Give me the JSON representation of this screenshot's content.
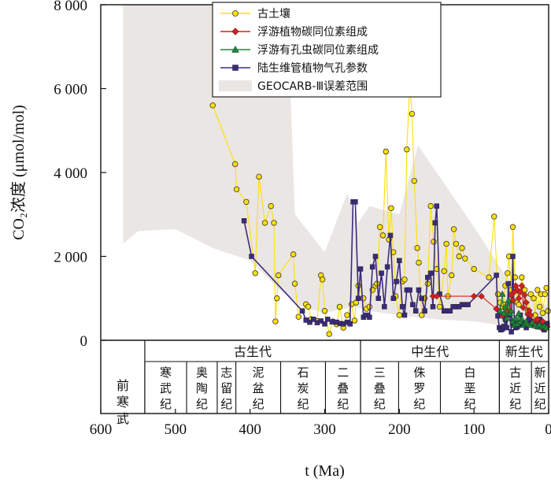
{
  "chart_data": {
    "type": "line",
    "ylabel": "CO₂浓度 (μmol/mol)",
    "xlabel": "t (Ma)",
    "xlim": [
      600,
      0
    ],
    "ylim": [
      0,
      8000
    ],
    "x_ticks": [
      {
        "value": 600,
        "label": "600"
      },
      {
        "value": 500,
        "label": "500"
      },
      {
        "value": 400,
        "label": "400"
      },
      {
        "value": 300,
        "label": "300"
      },
      {
        "value": 200,
        "label": "200"
      },
      {
        "value": 100,
        "label": "100"
      },
      {
        "value": 0,
        "label": "0"
      }
    ],
    "y_ticks": [
      {
        "value": 0,
        "label": "0"
      },
      {
        "value": 2000,
        "label": "2 000"
      },
      {
        "value": 4000,
        "label": "4 000"
      },
      {
        "value": 6000,
        "label": "6 000"
      },
      {
        "value": 8000,
        "label": "8 000"
      }
    ],
    "legend_position": "top-center",
    "error_band": {
      "name": "GEOCARB-Ⅲ误差范围",
      "color": "#eae6e4",
      "upper": [
        [
          570,
          8000
        ],
        [
          480,
          8000
        ],
        [
          350,
          8000
        ],
        [
          340,
          3000
        ],
        [
          300,
          2100
        ],
        [
          270,
          3500
        ],
        [
          255,
          2800
        ],
        [
          240,
          3200
        ],
        [
          200,
          3000
        ],
        [
          175,
          4650
        ],
        [
          100,
          2700
        ],
        [
          60,
          1600
        ],
        [
          30,
          1100
        ],
        [
          0,
          800
        ]
      ],
      "lower": [
        [
          570,
          2300
        ],
        [
          550,
          2600
        ],
        [
          500,
          2650
        ],
        [
          450,
          2200
        ],
        [
          400,
          1900
        ],
        [
          360,
          1200
        ],
        [
          330,
          800
        ],
        [
          300,
          650
        ],
        [
          260,
          800
        ],
        [
          240,
          700
        ],
        [
          200,
          600
        ],
        [
          150,
          500
        ],
        [
          100,
          450
        ],
        [
          60,
          350
        ],
        [
          30,
          300
        ],
        [
          0,
          200
        ]
      ]
    },
    "series": [
      {
        "name": "古土壤",
        "color": "#ffe000",
        "marker": "circle",
        "points": [
          [
            450,
            5600
          ],
          [
            420,
            4200
          ],
          [
            418,
            3600
          ],
          [
            405,
            3300
          ],
          [
            393,
            1600
          ],
          [
            388,
            3900
          ],
          [
            380,
            2800
          ],
          [
            372,
            3200
          ],
          [
            368,
            2800
          ],
          [
            366,
            450
          ],
          [
            364,
            1000
          ],
          [
            362,
            1550
          ],
          [
            342,
            2050
          ],
          [
            340,
            1350
          ],
          [
            335,
            560
          ],
          [
            325,
            860
          ],
          [
            322,
            800
          ],
          [
            318,
            500
          ],
          [
            310,
            460
          ],
          [
            305,
            1550
          ],
          [
            303,
            1450
          ],
          [
            300,
            700
          ],
          [
            294,
            150
          ],
          [
            289,
            450
          ],
          [
            284,
            380
          ],
          [
            280,
            800
          ],
          [
            275,
            300
          ],
          [
            270,
            600
          ],
          [
            264,
            860
          ],
          [
            260,
            470
          ],
          [
            258,
            900
          ],
          [
            255,
            1300
          ],
          [
            248,
            1000
          ],
          [
            244,
            750
          ],
          [
            240,
            800
          ],
          [
            236,
            1200
          ],
          [
            232,
            1300
          ],
          [
            230,
            1350
          ],
          [
            226,
            2700
          ],
          [
            222,
            2500
          ],
          [
            218,
            4500
          ],
          [
            214,
            2400
          ],
          [
            211,
            3150
          ],
          [
            208,
            2100
          ],
          [
            205,
            1050
          ],
          [
            200,
            600
          ],
          [
            196,
            1400
          ],
          [
            193,
            1450
          ],
          [
            190,
            4550
          ],
          [
            186,
            6100
          ],
          [
            183,
            5400
          ],
          [
            180,
            3800
          ],
          [
            176,
            2200
          ],
          [
            174,
            1850
          ],
          [
            170,
            600
          ],
          [
            166,
            1000
          ],
          [
            162,
            1350
          ],
          [
            158,
            3200
          ],
          [
            154,
            2350
          ],
          [
            150,
            1700
          ],
          [
            146,
            800
          ],
          [
            140,
            1650
          ],
          [
            137,
            2300
          ],
          [
            135,
            1050
          ],
          [
            130,
            1550
          ],
          [
            127,
            2650
          ],
          [
            124,
            2300
          ],
          [
            120,
            2000
          ],
          [
            116,
            2200
          ],
          [
            112,
            1950
          ],
          [
            100,
            1700
          ],
          [
            80,
            1500
          ],
          [
            73,
            2950
          ],
          [
            68,
            1100
          ],
          [
            65,
            900
          ],
          [
            62,
            800
          ],
          [
            60,
            850
          ],
          [
            58,
            1300
          ],
          [
            55,
            1600
          ],
          [
            53,
            2000
          ],
          [
            50,
            1200
          ],
          [
            48,
            2700
          ],
          [
            45,
            1500
          ],
          [
            42,
            900
          ],
          [
            40,
            850
          ],
          [
            36,
            1500
          ],
          [
            32,
            1200
          ],
          [
            28,
            700
          ],
          [
            24,
            1100
          ],
          [
            20,
            1000
          ],
          [
            18,
            600
          ],
          [
            15,
            1200
          ],
          [
            12,
            800
          ],
          [
            10,
            1100
          ],
          [
            8,
            650
          ],
          [
            5,
            1100
          ],
          [
            3,
            1250
          ],
          [
            1,
            700
          ]
        ]
      },
      {
        "name": "浮游植物碳同位素组成",
        "color": "#d42020",
        "marker": "diamond",
        "points": [
          [
            155,
            1050
          ],
          [
            150,
            1050
          ],
          [
            100,
            1050
          ],
          [
            90,
            1050
          ],
          [
            70,
            750
          ],
          [
            62,
            580
          ],
          [
            58,
            640
          ],
          [
            55,
            700
          ],
          [
            52,
            650
          ],
          [
            50,
            1080
          ],
          [
            48,
            960
          ],
          [
            46,
            1150
          ],
          [
            44,
            1300
          ],
          [
            42,
            1200
          ],
          [
            40,
            1000
          ],
          [
            38,
            1150
          ],
          [
            36,
            1300
          ],
          [
            34,
            780
          ],
          [
            32,
            1080
          ],
          [
            30,
            900
          ],
          [
            28,
            620
          ],
          [
            26,
            710
          ],
          [
            24,
            600
          ],
          [
            20,
            440
          ],
          [
            18,
            380
          ],
          [
            15,
            500
          ],
          [
            12,
            340
          ],
          [
            10,
            300
          ],
          [
            8,
            450
          ],
          [
            6,
            320
          ],
          [
            4,
            290
          ],
          [
            2,
            320
          ]
        ]
      },
      {
        "name": "浮游有孔虫碳同位素组成",
        "color": "#1a8a3a",
        "marker": "triangle",
        "points": [
          [
            65,
            700
          ],
          [
            62,
            1100
          ],
          [
            60,
            640
          ],
          [
            58,
            800
          ],
          [
            56,
            520
          ],
          [
            54,
            950
          ],
          [
            52,
            640
          ],
          [
            50,
            700
          ],
          [
            48,
            450
          ],
          [
            46,
            360
          ],
          [
            44,
            520
          ],
          [
            42,
            390
          ],
          [
            40,
            640
          ],
          [
            38,
            440
          ],
          [
            36,
            510
          ],
          [
            34,
            360
          ],
          [
            32,
            400
          ],
          [
            30,
            450
          ],
          [
            28,
            380
          ],
          [
            25,
            360
          ],
          [
            22,
            420
          ],
          [
            18,
            350
          ],
          [
            15,
            330
          ],
          [
            12,
            370
          ],
          [
            9,
            320
          ],
          [
            6,
            340
          ],
          [
            3,
            300
          ]
        ]
      },
      {
        "name": "陆生维管植物气孔参数",
        "color": "#3b2b7e",
        "marker": "square",
        "points": [
          [
            408,
            2850
          ],
          [
            398,
            2000
          ],
          [
            330,
            700
          ],
          [
            325,
            480
          ],
          [
            320,
            430
          ],
          [
            315,
            500
          ],
          [
            310,
            420
          ],
          [
            305,
            460
          ],
          [
            300,
            390
          ],
          [
            296,
            500
          ],
          [
            290,
            440
          ],
          [
            284,
            430
          ],
          [
            279,
            400
          ],
          [
            275,
            390
          ],
          [
            270,
            430
          ],
          [
            266,
            390
          ],
          [
            262,
            3300
          ],
          [
            259,
            3300
          ],
          [
            255,
            1000
          ],
          [
            252,
            1700
          ],
          [
            248,
            550
          ],
          [
            244,
            600
          ],
          [
            240,
            550
          ],
          [
            236,
            1750
          ],
          [
            232,
            2000
          ],
          [
            228,
            1000
          ],
          [
            224,
            1600
          ],
          [
            220,
            800
          ],
          [
            216,
            1750
          ],
          [
            212,
            2500
          ],
          [
            208,
            1000
          ],
          [
            204,
            1400
          ],
          [
            200,
            1900
          ],
          [
            196,
            800
          ],
          [
            193,
            600
          ],
          [
            190,
            1200
          ],
          [
            186,
            1200
          ],
          [
            182,
            850
          ],
          [
            178,
            700
          ],
          [
            174,
            1200
          ],
          [
            170,
            1000
          ],
          [
            166,
            700
          ],
          [
            162,
            1500
          ],
          [
            158,
            1600
          ],
          [
            155,
            800
          ],
          [
            152,
            2800
          ],
          [
            150,
            3200
          ],
          [
            146,
            1100
          ],
          [
            140,
            700
          ],
          [
            136,
            700
          ],
          [
            132,
            700
          ],
          [
            128,
            800
          ],
          [
            124,
            800
          ],
          [
            120,
            800
          ],
          [
            116,
            850
          ],
          [
            112,
            850
          ],
          [
            108,
            850
          ],
          [
            70,
            1550
          ],
          [
            68,
            580
          ],
          [
            66,
            300
          ],
          [
            64,
            250
          ],
          [
            62,
            270
          ],
          [
            60,
            330
          ],
          [
            58,
            500
          ],
          [
            56,
            300
          ],
          [
            54,
            1350
          ],
          [
            52,
            600
          ],
          [
            50,
            200
          ],
          [
            48,
            2000
          ],
          [
            46,
            400
          ],
          [
            44,
            300
          ],
          [
            42,
            320
          ],
          [
            40,
            380
          ],
          [
            38,
            600
          ],
          [
            36,
            380
          ],
          [
            34,
            360
          ],
          [
            32,
            420
          ],
          [
            30,
            300
          ],
          [
            28,
            420
          ],
          [
            26,
            500
          ],
          [
            24,
            380
          ],
          [
            22,
            400
          ],
          [
            20,
            450
          ],
          [
            18,
            450
          ],
          [
            16,
            400
          ],
          [
            14,
            320
          ],
          [
            12,
            500
          ],
          [
            10,
            350
          ],
          [
            8,
            400
          ],
          [
            6,
            250
          ],
          [
            4,
            350
          ],
          [
            2,
            400
          ]
        ]
      }
    ]
  },
  "timescale": {
    "eras": [
      {
        "name": "前寒武",
        "start": 600,
        "end": 541
      },
      {
        "name": "古生代",
        "start": 541,
        "end": 252
      },
      {
        "name": "中生代",
        "start": 252,
        "end": 66
      },
      {
        "name": "新生代",
        "start": 66,
        "end": 0
      }
    ],
    "periods": [
      {
        "name": "寒武纪",
        "start": 541,
        "end": 485
      },
      {
        "name": "奥陶纪",
        "start": 485,
        "end": 444
      },
      {
        "name": "志留纪",
        "start": 444,
        "end": 419
      },
      {
        "name": "泥盆纪",
        "start": 419,
        "end": 359
      },
      {
        "name": "石炭纪",
        "start": 359,
        "end": 299
      },
      {
        "name": "二叠纪",
        "start": 299,
        "end": 252
      },
      {
        "name": "三叠纪",
        "start": 252,
        "end": 201
      },
      {
        "name": "侏罗纪",
        "start": 201,
        "end": 145
      },
      {
        "name": "白垩纪",
        "start": 145,
        "end": 66
      },
      {
        "name": "古近纪",
        "start": 66,
        "end": 23
      },
      {
        "name": "新近纪",
        "start": 23,
        "end": 0
      }
    ]
  }
}
